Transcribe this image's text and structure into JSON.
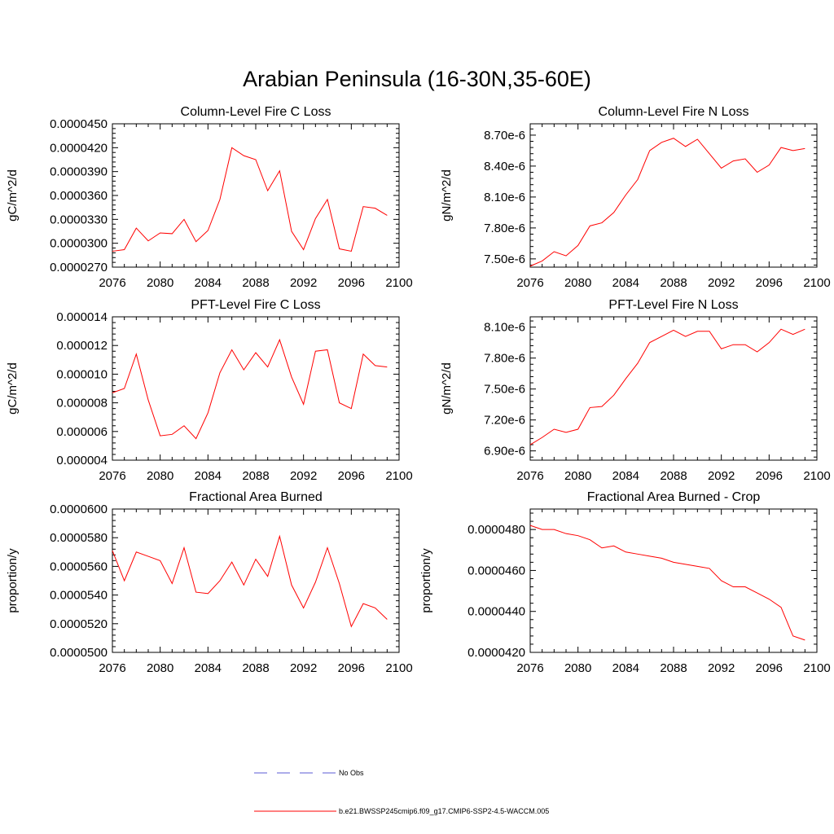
{
  "figure": {
    "title": "Arabian Peninsula (16-30N,35-60E)"
  },
  "legend": {
    "entries": [
      {
        "label": "No Obs",
        "color": "#5b5bd6",
        "style": "dashed"
      },
      {
        "label": "b.e21.BWSSP245cmip6.f09_g17.CMIP6-SSP2-4.5-WACCM.005",
        "color": "#ff0000",
        "style": "solid"
      }
    ]
  },
  "chart_data": [
    {
      "type": "line",
      "title": "Column-Level Fire C Loss",
      "xlabel": "",
      "ylabel": "gC/m^2/d",
      "xlim": [
        2076,
        2100
      ],
      "ylim": [
        2.7e-05,
        4.5e-05
      ],
      "x_ticks": [
        2076,
        2080,
        2084,
        2088,
        2092,
        2096,
        2100
      ],
      "y_ticks": [
        "0.0000270",
        "0.0000300",
        "0.0000330",
        "0.0000360",
        "0.0000390",
        "0.0000420",
        "0.0000450"
      ],
      "y_tick_values": [
        2.7e-05,
        3e-05,
        3.3e-05,
        3.6e-05,
        3.9e-05,
        4.2e-05,
        4.5e-05
      ],
      "x": [
        2076,
        2077,
        2078,
        2079,
        2080,
        2081,
        2082,
        2083,
        2084,
        2085,
        2086,
        2087,
        2088,
        2089,
        2090,
        2091,
        2092,
        2093,
        2094,
        2095,
        2096,
        2097,
        2098,
        2099
      ],
      "series": [
        {
          "name": "b.e21.BWSSP245cmip6.f09_g17.CMIP6-SSP2-4.5-WACCM.005",
          "color": "#ff0000",
          "values": [
            2.9e-05,
            2.92e-05,
            3.19e-05,
            3.03e-05,
            3.13e-05,
            3.12e-05,
            3.3e-05,
            3.02e-05,
            3.16e-05,
            3.55e-05,
            4.2e-05,
            4.1e-05,
            4.05e-05,
            3.66e-05,
            3.91e-05,
            3.15e-05,
            2.92e-05,
            3.31e-05,
            3.55e-05,
            2.93e-05,
            2.9e-05,
            3.46e-05,
            3.44e-05,
            3.35e-05
          ]
        }
      ]
    },
    {
      "type": "line",
      "title": "Column-Level Fire N Loss",
      "xlabel": "",
      "ylabel": "gN/m^2/d",
      "xlim": [
        2076,
        2100
      ],
      "ylim": [
        7.42e-06,
        8.81e-06
      ],
      "x_ticks": [
        2076,
        2080,
        2084,
        2088,
        2092,
        2096,
        2100
      ],
      "y_ticks": [
        "7.50e-6",
        "7.80e-6",
        "8.10e-6",
        "8.40e-6",
        "8.70e-6"
      ],
      "y_tick_values": [
        7.5e-06,
        7.8e-06,
        8.1e-06,
        8.4e-06,
        8.7e-06
      ],
      "x": [
        2076,
        2077,
        2078,
        2079,
        2080,
        2081,
        2082,
        2083,
        2084,
        2085,
        2086,
        2087,
        2088,
        2089,
        2090,
        2091,
        2092,
        2093,
        2094,
        2095,
        2096,
        2097,
        2098,
        2099
      ],
      "series": [
        {
          "name": "b.e21.BWSSP245cmip6.f09_g17.CMIP6-SSP2-4.5-WACCM.005",
          "color": "#ff0000",
          "values": [
            7.43e-06,
            7.48e-06,
            7.57e-06,
            7.53e-06,
            7.63e-06,
            7.82e-06,
            7.85e-06,
            7.95e-06,
            8.12e-06,
            8.27e-06,
            8.55e-06,
            8.63e-06,
            8.67e-06,
            8.59e-06,
            8.66e-06,
            8.52e-06,
            8.38e-06,
            8.45e-06,
            8.47e-06,
            8.34e-06,
            8.41e-06,
            8.58e-06,
            8.55e-06,
            8.57e-06
          ]
        }
      ]
    },
    {
      "type": "line",
      "title": "PFT-Level Fire C Loss",
      "xlabel": "",
      "ylabel": "gC/m^2/d",
      "xlim": [
        2076,
        2100
      ],
      "ylim": [
        4e-06,
        1.4e-05
      ],
      "x_ticks": [
        2076,
        2080,
        2084,
        2088,
        2092,
        2096,
        2100
      ],
      "y_ticks": [
        "0.000004",
        "0.000006",
        "0.000008",
        "0.000010",
        "0.000012",
        "0.000014"
      ],
      "y_tick_values": [
        4e-06,
        6e-06,
        8e-06,
        1e-05,
        1.2e-05,
        1.4e-05
      ],
      "x": [
        2076,
        2077,
        2078,
        2079,
        2080,
        2081,
        2082,
        2083,
        2084,
        2085,
        2086,
        2087,
        2088,
        2089,
        2090,
        2091,
        2092,
        2093,
        2094,
        2095,
        2096,
        2097,
        2098,
        2099
      ],
      "series": [
        {
          "name": "b.e21.BWSSP245cmip6.f09_g17.CMIP6-SSP2-4.5-WACCM.005",
          "color": "#ff0000",
          "values": [
            8.7e-06,
            9e-06,
            1.14e-05,
            8.2e-06,
            5.7e-06,
            5.8e-06,
            6.4e-06,
            5.5e-06,
            7.3e-06,
            1.01e-05,
            1.17e-05,
            1.03e-05,
            1.15e-05,
            1.05e-05,
            1.24e-05,
            9.8e-06,
            7.9e-06,
            1.16e-05,
            1.17e-05,
            8e-06,
            7.6e-06,
            1.14e-05,
            1.06e-05,
            1.05e-05
          ]
        }
      ]
    },
    {
      "type": "line",
      "title": "PFT-Level Fire N Loss",
      "xlabel": "",
      "ylabel": "gN/m^2/d",
      "xlim": [
        2076,
        2100
      ],
      "ylim": [
        6.81e-06,
        8.2e-06
      ],
      "x_ticks": [
        2076,
        2080,
        2084,
        2088,
        2092,
        2096,
        2100
      ],
      "y_ticks": [
        "6.90e-6",
        "7.20e-6",
        "7.50e-6",
        "7.80e-6",
        "8.10e-6"
      ],
      "y_tick_values": [
        6.9e-06,
        7.2e-06,
        7.5e-06,
        7.8e-06,
        8.1e-06
      ],
      "x": [
        2076,
        2077,
        2078,
        2079,
        2080,
        2081,
        2082,
        2083,
        2084,
        2085,
        2086,
        2087,
        2088,
        2089,
        2090,
        2091,
        2092,
        2093,
        2094,
        2095,
        2096,
        2097,
        2098,
        2099
      ],
      "series": [
        {
          "name": "b.e21.BWSSP245cmip6.f09_g17.CMIP6-SSP2-4.5-WACCM.005",
          "color": "#ff0000",
          "values": [
            6.96e-06,
            7.03e-06,
            7.11e-06,
            7.08e-06,
            7.11e-06,
            7.32e-06,
            7.33e-06,
            7.44e-06,
            7.6e-06,
            7.75e-06,
            7.95e-06,
            8.01e-06,
            8.07e-06,
            8.01e-06,
            8.06e-06,
            8.06e-06,
            7.89e-06,
            7.93e-06,
            7.93e-06,
            7.86e-06,
            7.95e-06,
            8.08e-06,
            8.03e-06,
            8.08e-06
          ]
        }
      ]
    },
    {
      "type": "line",
      "title": "Fractional Area Burned",
      "xlabel": "",
      "ylabel": "proportion/y",
      "xlim": [
        2076,
        2100
      ],
      "ylim": [
        5e-05,
        6e-05
      ],
      "x_ticks": [
        2076,
        2080,
        2084,
        2088,
        2092,
        2096,
        2100
      ],
      "y_ticks": [
        "0.0000500",
        "0.0000520",
        "0.0000540",
        "0.0000560",
        "0.0000580",
        "0.0000600"
      ],
      "y_tick_values": [
        5e-05,
        5.2e-05,
        5.4e-05,
        5.6e-05,
        5.8e-05,
        6e-05
      ],
      "x": [
        2076,
        2077,
        2078,
        2079,
        2080,
        2081,
        2082,
        2083,
        2084,
        2085,
        2086,
        2087,
        2088,
        2089,
        2090,
        2091,
        2092,
        2093,
        2094,
        2095,
        2096,
        2097,
        2098,
        2099
      ],
      "series": [
        {
          "name": "b.e21.BWSSP245cmip6.f09_g17.CMIP6-SSP2-4.5-WACCM.005",
          "color": "#ff0000",
          "values": [
            5.71e-05,
            5.5e-05,
            5.7e-05,
            5.67e-05,
            5.64e-05,
            5.48e-05,
            5.73e-05,
            5.42e-05,
            5.41e-05,
            5.5e-05,
            5.63e-05,
            5.47e-05,
            5.65e-05,
            5.53e-05,
            5.81e-05,
            5.47e-05,
            5.31e-05,
            5.49e-05,
            5.73e-05,
            5.48e-05,
            5.18e-05,
            5.34e-05,
            5.31e-05,
            5.23e-05
          ]
        }
      ]
    },
    {
      "type": "line",
      "title": "Fractional Area Burned - Crop",
      "xlabel": "",
      "ylabel": "proportion/y",
      "xlim": [
        2076,
        2100
      ],
      "ylim": [
        4.2e-05,
        4.9e-05
      ],
      "x_ticks": [
        2076,
        2080,
        2084,
        2088,
        2092,
        2096,
        2100
      ],
      "y_ticks": [
        "0.0000420",
        "0.0000440",
        "0.0000460",
        "0.0000480"
      ],
      "y_tick_values": [
        4.2e-05,
        4.4e-05,
        4.6e-05,
        4.8e-05
      ],
      "x": [
        2076,
        2077,
        2078,
        2079,
        2080,
        2081,
        2082,
        2083,
        2084,
        2085,
        2086,
        2087,
        2088,
        2089,
        2090,
        2091,
        2092,
        2093,
        2094,
        2095,
        2096,
        2097,
        2098,
        2099
      ],
      "series": [
        {
          "name": "b.e21.BWSSP245cmip6.f09_g17.CMIP6-SSP2-4.5-WACCM.005",
          "color": "#ff0000",
          "values": [
            4.82e-05,
            4.8e-05,
            4.8e-05,
            4.78e-05,
            4.77e-05,
            4.75e-05,
            4.71e-05,
            4.72e-05,
            4.69e-05,
            4.68e-05,
            4.67e-05,
            4.66e-05,
            4.64e-05,
            4.63e-05,
            4.62e-05,
            4.61e-05,
            4.55e-05,
            4.52e-05,
            4.52e-05,
            4.49e-05,
            4.46e-05,
            4.42e-05,
            4.28e-05,
            4.26e-05
          ]
        }
      ]
    }
  ]
}
